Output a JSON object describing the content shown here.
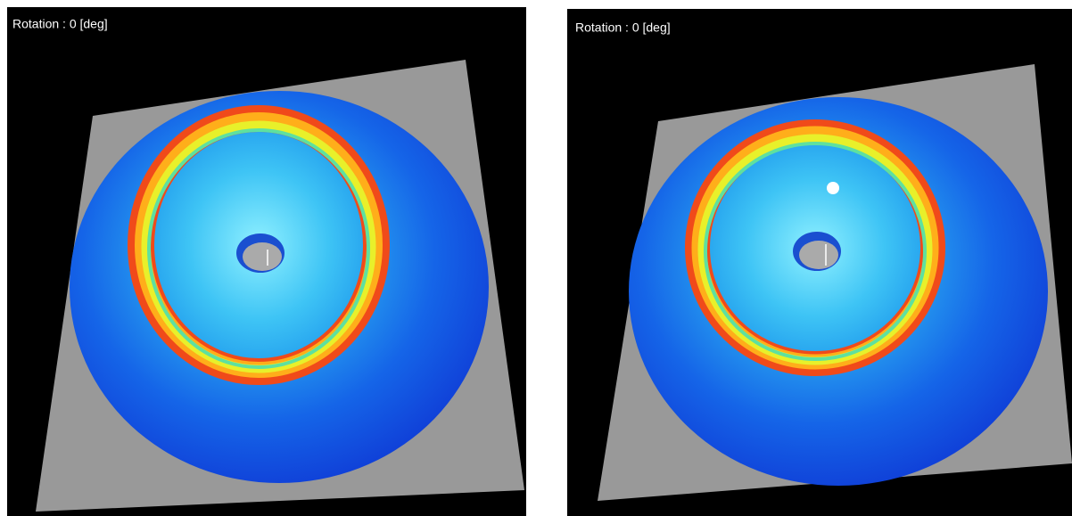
{
  "panels": [
    {
      "label": "Rotation : 0 [deg]"
    },
    {
      "label": "Rotation : 0 [deg]"
    }
  ]
}
